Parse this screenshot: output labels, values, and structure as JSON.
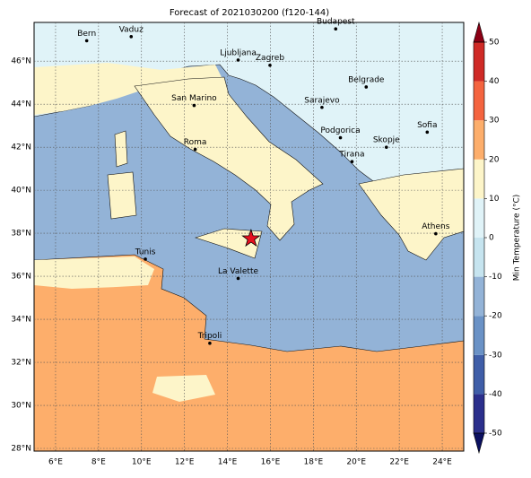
{
  "chart_data": {
    "type": "map",
    "title": "Forecast of 2021030200 (f120-144)",
    "xlim": [
      5,
      25
    ],
    "ylim": [
      27.875,
      47.8
    ],
    "xticks": [
      {
        "value": 6,
        "label": "6°E"
      },
      {
        "value": 8,
        "label": "8°E"
      },
      {
        "value": 10,
        "label": "10°E"
      },
      {
        "value": 12,
        "label": "12°E"
      },
      {
        "value": 14,
        "label": "14°E"
      },
      {
        "value": 16,
        "label": "16°E"
      },
      {
        "value": 18,
        "label": "18°E"
      },
      {
        "value": 20,
        "label": "20°E"
      },
      {
        "value": 22,
        "label": "22°E"
      },
      {
        "value": 24,
        "label": "24°E"
      }
    ],
    "yticks": [
      {
        "value": 28,
        "label": "28°N"
      },
      {
        "value": 30,
        "label": "30°N"
      },
      {
        "value": 32,
        "label": "32°N"
      },
      {
        "value": 34,
        "label": "34°N"
      },
      {
        "value": 36,
        "label": "36°N"
      },
      {
        "value": 38,
        "label": "38°N"
      },
      {
        "value": 40,
        "label": "40°N"
      },
      {
        "value": 42,
        "label": "42°N"
      },
      {
        "value": 44,
        "label": "44°N"
      },
      {
        "value": 46,
        "label": "46°N"
      }
    ],
    "grid": true,
    "cities": [
      {
        "name": "Bern",
        "lon": 7.45,
        "lat": 46.95
      },
      {
        "name": "Vaduz",
        "lon": 9.52,
        "lat": 47.14
      },
      {
        "name": "Budapest",
        "lon": 19.04,
        "lat": 47.5
      },
      {
        "name": "Ljubljana",
        "lon": 14.5,
        "lat": 46.05
      },
      {
        "name": "Zagreb",
        "lon": 15.98,
        "lat": 45.81
      },
      {
        "name": "Belgrade",
        "lon": 20.46,
        "lat": 44.8
      },
      {
        "name": "San Marino",
        "lon": 12.45,
        "lat": 43.94
      },
      {
        "name": "Sarajevo",
        "lon": 18.4,
        "lat": 43.85
      },
      {
        "name": "Sofia",
        "lon": 23.3,
        "lat": 42.7
      },
      {
        "name": "Podgorica",
        "lon": 19.26,
        "lat": 42.44
      },
      {
        "name": "Skopje",
        "lon": 21.4,
        "lat": 42.0
      },
      {
        "name": "Roma",
        "lon": 12.5,
        "lat": 41.9
      },
      {
        "name": "Tirana",
        "lon": 19.8,
        "lat": 41.33
      },
      {
        "name": "Athens",
        "lon": 23.7,
        "lat": 37.98
      },
      {
        "name": "Tunis",
        "lon": 10.18,
        "lat": 36.8
      },
      {
        "name": "La Valette",
        "lon": 14.5,
        "lat": 35.9
      },
      {
        "name": "Tripoli",
        "lon": 13.18,
        "lat": 32.89
      }
    ],
    "marker": {
      "lon": 15.1,
      "lat": 37.75,
      "color": "#e8101e"
    },
    "colorbar": {
      "label": "Min Temperature (°C)",
      "lim": [
        -50,
        50
      ],
      "ticks": [
        -50,
        -40,
        -30,
        -20,
        -10,
        0,
        10,
        20,
        30,
        40,
        50
      ],
      "colors": [
        "#2b2f8c",
        "#3f5ea8",
        "#6a92c6",
        "#93b3d7",
        "#c6e4ef",
        "#e0f3f8",
        "#fdf5c9",
        "#fdae6b",
        "#f4643f",
        "#cf2a26"
      ],
      "extend_colors": [
        "#0b1060",
        "#8c0015"
      ]
    }
  }
}
